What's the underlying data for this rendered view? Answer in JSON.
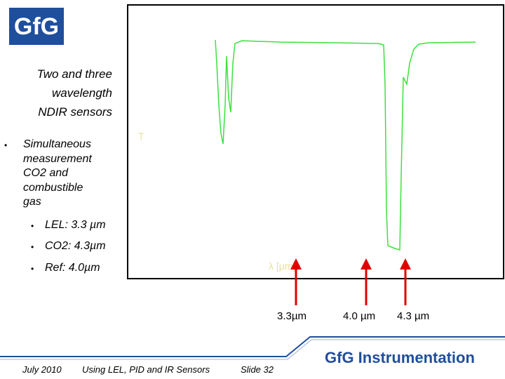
{
  "logo": "GfG",
  "title": [
    "Two and three",
    "wavelength",
    "NDIR sensors"
  ],
  "bullet": [
    "Simultaneous",
    "measurement",
    "CO2 and",
    "combustible",
    "gas"
  ],
  "sub_bullets": [
    "LEL: 3.3 µm",
    "CO2: 4.3µm",
    "Ref: 4.0µm"
  ],
  "chart_labels": {
    "y": "T",
    "x": "λ [µm]"
  },
  "wavelengths": [
    "3.3µm",
    "4.0 µm",
    "4.3 µm"
  ],
  "footer": {
    "date": "July 2010",
    "topic": "Using LEL, PID and IR Sensors",
    "slide": "Slide 32",
    "brand": "GfG Instrumentation"
  }
}
